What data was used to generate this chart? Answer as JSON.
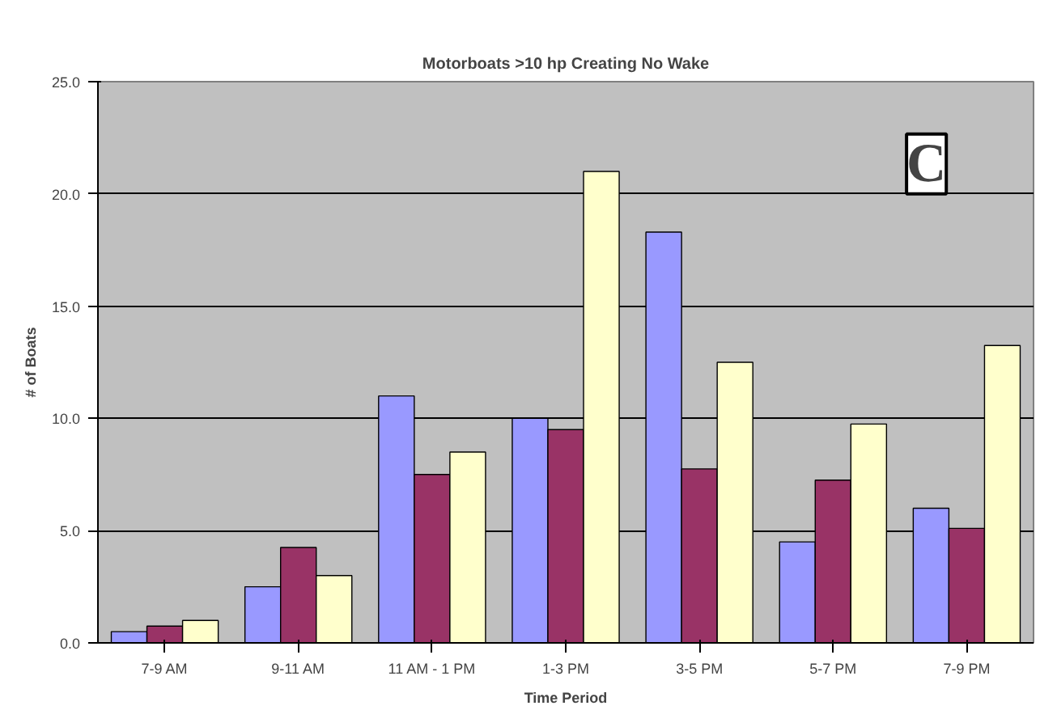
{
  "chart_data": {
    "type": "bar",
    "title": "Motorboats >10 hp Creating No Wake",
    "xlabel": "Time Period",
    "ylabel": "# of Boats",
    "categories": [
      "7-9 AM",
      "9-11 AM",
      "11 AM - 1 PM",
      "1-3 PM",
      "3-5 PM",
      "5-7 PM",
      "7-9 PM"
    ],
    "series": [
      {
        "color": "#9999ff",
        "values": [
          0.5,
          2.5,
          11.0,
          10.0,
          18.3,
          4.5,
          6.0
        ]
      },
      {
        "color": "#993366",
        "values": [
          0.75,
          4.25,
          7.5,
          9.5,
          7.75,
          7.25,
          5.1
        ]
      },
      {
        "color": "#ffffcc",
        "values": [
          1.0,
          3.0,
          8.5,
          21.0,
          12.5,
          9.75,
          13.25
        ]
      }
    ],
    "ylim": [
      0,
      25
    ],
    "yticks": [
      {
        "value": 0,
        "label": "0.0"
      },
      {
        "value": 5,
        "label": "5.0"
      },
      {
        "value": 10,
        "label": "10.0"
      },
      {
        "value": 15,
        "label": "15.0"
      },
      {
        "value": 20,
        "label": "20.0"
      },
      {
        "value": 25,
        "label": "25.0"
      }
    ],
    "grid": "y",
    "annotations": [
      "C"
    ]
  }
}
